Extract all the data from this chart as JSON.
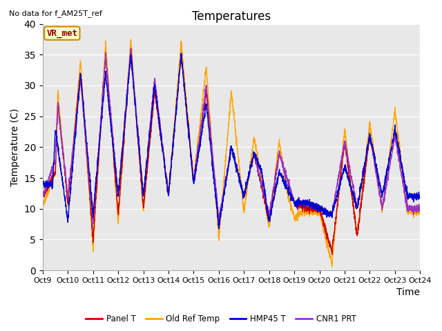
{
  "title": "Temperatures",
  "ylabel": "Temperature (C)",
  "xlabel": "Time",
  "annotation": "No data for f_AM25T_ref",
  "vr_label": "VR_met",
  "ylim": [
    0,
    40
  ],
  "yticks": [
    0,
    5,
    10,
    15,
    20,
    25,
    30,
    35,
    40
  ],
  "xtick_labels": [
    "Oct 9",
    "Oct 10",
    "Oct 11",
    "Oct 12",
    "Oct 13",
    "Oct 14",
    "Oct 15",
    "Oct 16",
    "Oct 17",
    "Oct 18",
    "Oct 19",
    "Oct 20",
    "Oct 21",
    "Oct 22",
    "Oct 23",
    "Oct 24"
  ],
  "line_colors": {
    "panel_t": "#cc0000",
    "old_ref": "#ffa500",
    "hmp45": "#0000cc",
    "cnr1": "#9933cc"
  },
  "legend_labels": [
    "Panel T",
    "Old Ref Temp",
    "HMP45 T",
    "CNR1 PRT"
  ],
  "bg_color": "#e8e8e8",
  "fig_bg": "#ffffff",
  "title_fontsize": 12,
  "axis_fontsize": 10,
  "day_peaks_orange": [
    29,
    34,
    37,
    37.5,
    30,
    37,
    33,
    29,
    21.5,
    21,
    0,
    23,
    24,
    26
  ],
  "day_troughs_orange": [
    10.5,
    3.5,
    7.5,
    9.5,
    12,
    14.5,
    5,
    9.5,
    7,
    8.5,
    9.5,
    1,
    5.5,
    9.5
  ],
  "day_peaks_red": [
    27,
    32,
    35,
    36,
    29,
    35,
    30,
    20,
    19,
    19,
    21,
    21,
    22,
    22
  ],
  "day_troughs_red": [
    12,
    5,
    9,
    10,
    12.5,
    14.5,
    7.5,
    12,
    8,
    11,
    10,
    3,
    5.5,
    10
  ],
  "day_peaks_blue": [
    23,
    32,
    32,
    35,
    30,
    35,
    27,
    20,
    19,
    16,
    21,
    17,
    22,
    23
  ],
  "day_troughs_blue": [
    8,
    8,
    9,
    12,
    12,
    14,
    7,
    12,
    8,
    11,
    10,
    9,
    10,
    12
  ],
  "day_peaks_purple": [
    27,
    31,
    35,
    36,
    31,
    35,
    30,
    20,
    19,
    19,
    21,
    21,
    22,
    22
  ],
  "day_troughs_purple": [
    12,
    8,
    9,
    12,
    12,
    14,
    8,
    12,
    9,
    11,
    10,
    9,
    10,
    12
  ]
}
